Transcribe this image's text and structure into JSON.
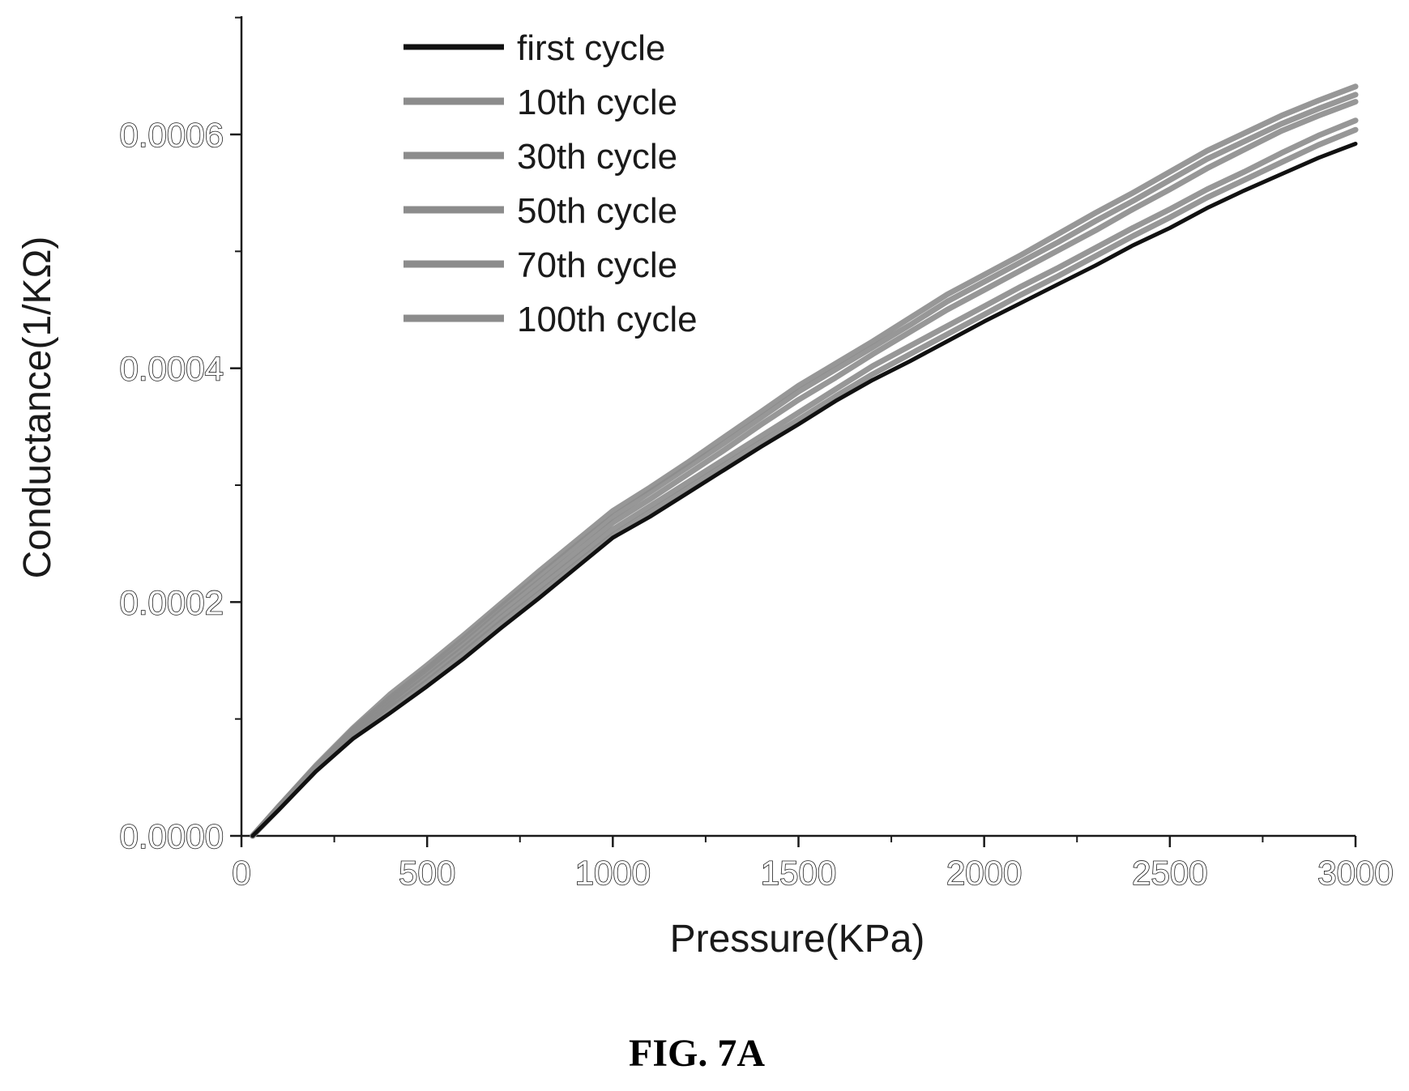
{
  "figure": {
    "caption": "FIG. 7A"
  },
  "colors": {
    "axis": "#1a1a1a",
    "first_cycle": "#111111",
    "other_cycles": "#8c8c8c"
  },
  "chart_data": {
    "type": "line",
    "xlabel": "Pressure(KPa)",
    "ylabel": "Conductance(1/KΩ)",
    "xlim": [
      0,
      3000
    ],
    "ylim": [
      0,
      0.0007
    ],
    "x_ticks": [
      0,
      500,
      1000,
      1500,
      2000,
      2500,
      3000
    ],
    "x_tick_labels": [
      "0",
      "500",
      "1000",
      "1500",
      "2000",
      "2500",
      "3000"
    ],
    "y_ticks": [
      0,
      0.0002,
      0.0004,
      0.0006
    ],
    "y_tick_labels": [
      "0.0000",
      "0.0002",
      "0.0004",
      "0.0006"
    ],
    "grid": false,
    "legend_position": "top-left",
    "x": [
      30,
      100,
      200,
      300,
      400,
      500,
      600,
      700,
      800,
      900,
      1000,
      1100,
      1200,
      1300,
      1400,
      1500,
      1600,
      1700,
      1800,
      1900,
      2000,
      2100,
      2200,
      2300,
      2400,
      2500,
      2600,
      2700,
      2800,
      2900,
      3000
    ],
    "series": [
      {
        "name": "first cycle",
        "color": "#111111",
        "values": [
          0,
          2.2e-05,
          5.5e-05,
          8.3e-05,
          0.000105,
          0.000128,
          0.000152,
          0.000178,
          0.000203,
          0.000229,
          0.000255,
          0.000273,
          0.000293,
          0.000313,
          0.000333,
          0.000352,
          0.000372,
          0.00039,
          0.000406,
          0.000423,
          0.00044,
          0.000456,
          0.000472,
          0.000488,
          0.000505,
          0.00052,
          0.000537,
          0.000552,
          0.000566,
          0.00058,
          0.000592
        ]
      },
      {
        "name": "10th cycle",
        "color": "#8c8c8c",
        "values": [
          0,
          2.3e-05,
          5.6e-05,
          8.5e-05,
          0.000109,
          0.000132,
          0.000157,
          0.000183,
          0.000207,
          0.000232,
          0.000257,
          0.000277,
          0.000297,
          0.000317,
          0.000337,
          0.000356,
          0.000376,
          0.000395,
          0.000412,
          0.000429,
          0.000446,
          0.000463,
          0.000479,
          0.000496,
          0.000513,
          0.000529,
          0.000546,
          0.000561,
          0.000576,
          0.000591,
          0.000604
        ]
      },
      {
        "name": "30th cycle",
        "color": "#8c8c8c",
        "values": [
          0,
          2.4e-05,
          5.7e-05,
          8.7e-05,
          0.000112,
          0.000136,
          0.000161,
          0.000187,
          0.000212,
          0.000237,
          0.000262,
          0.000282,
          0.000302,
          0.000322,
          0.000342,
          0.000362,
          0.000382,
          0.000402,
          0.000419,
          0.000436,
          0.000453,
          0.00047,
          0.000486,
          0.000503,
          0.00052,
          0.000536,
          0.000553,
          0.000568,
          0.000584,
          0.000599,
          0.000612
        ]
      },
      {
        "name": "50th cycle",
        "color": "#8c8c8c",
        "values": [
          0,
          2.4e-05,
          5.8e-05,
          8.9e-05,
          0.000115,
          0.00014,
          0.000165,
          0.000192,
          0.000217,
          0.000242,
          0.000268,
          0.000288,
          0.000309,
          0.00033,
          0.000352,
          0.000373,
          0.000392,
          0.000412,
          0.000431,
          0.00045,
          0.000467,
          0.000484,
          0.000501,
          0.000518,
          0.000536,
          0.000553,
          0.000571,
          0.000587,
          0.000603,
          0.000616,
          0.000628
        ]
      },
      {
        "name": "70th cycle",
        "color": "#8c8c8c",
        "values": [
          0,
          2.5e-05,
          5.9e-05,
          9.1e-05,
          0.000118,
          0.000143,
          0.000169,
          0.000196,
          0.000222,
          0.000248,
          0.000273,
          0.000294,
          0.000315,
          0.000336,
          0.000358,
          0.00038,
          0.000399,
          0.000418,
          0.000437,
          0.000457,
          0.000474,
          0.000491,
          0.000508,
          0.000526,
          0.000543,
          0.000561,
          0.000579,
          0.000594,
          0.000609,
          0.000622,
          0.000634
        ]
      },
      {
        "name": "100th cycle",
        "color": "#8c8c8c",
        "values": [
          0,
          2.5e-05,
          6e-05,
          9.2e-05,
          0.000121,
          0.000146,
          0.000172,
          0.000199,
          0.000226,
          0.000252,
          0.000278,
          0.000298,
          0.000319,
          0.000341,
          0.000363,
          0.000385,
          0.000404,
          0.000423,
          0.000443,
          0.000463,
          0.00048,
          0.000497,
          0.000515,
          0.000533,
          0.00055,
          0.000568,
          0.000586,
          0.000601,
          0.000616,
          0.000629,
          0.000641
        ]
      }
    ]
  }
}
